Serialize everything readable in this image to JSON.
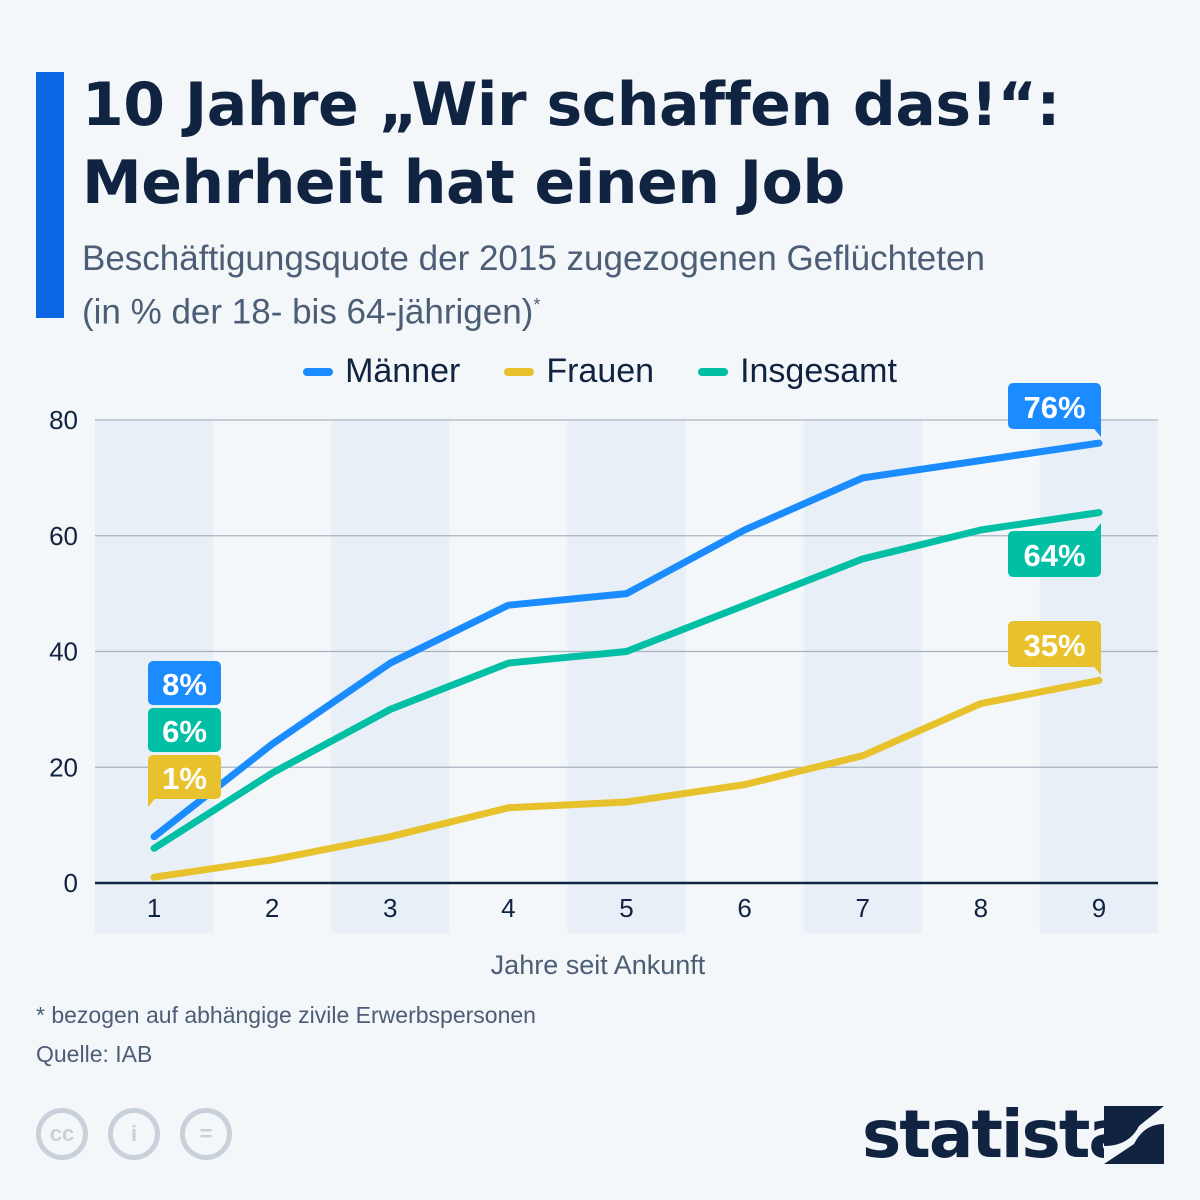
{
  "header": {
    "title_line1": "10 Jahre „Wir schaffen das!“:",
    "title_line2": "Mehrheit hat einen Job",
    "subtitle_line1": "Beschäftigungsquote der 2015 zugezogenen Geflüchteten",
    "subtitle_line2": "(in % der 18- bis 64-jährigen)",
    "subtitle_mark": "*"
  },
  "chart_data": {
    "type": "line",
    "title": "10 Jahre „Wir schaffen das!“: Mehrheit hat einen Job",
    "subtitle": "Beschäftigungsquote der 2015 zugezogenen Geflüchteten (in % der 18- bis 64-jährigen)*",
    "xlabel": "Jahre seit Ankunft",
    "ylabel": "",
    "x": [
      1,
      2,
      3,
      4,
      5,
      6,
      7,
      8,
      9
    ],
    "yticks": [
      0,
      20,
      40,
      60,
      80
    ],
    "ylim": [
      0,
      80
    ],
    "grid": true,
    "legend_position": "top",
    "series": [
      {
        "name": "Männer",
        "color": "#1a8cff",
        "values": [
          8,
          24,
          38,
          48,
          50,
          61,
          70,
          73,
          76
        ],
        "labels": {
          "first": "8%",
          "last": "76%"
        }
      },
      {
        "name": "Frauen",
        "color": "#e8c22c",
        "values": [
          1,
          4,
          8,
          13,
          14,
          17,
          22,
          31,
          35
        ],
        "labels": {
          "first": "1%",
          "last": "35%"
        }
      },
      {
        "name": "Insgesamt",
        "color": "#00bfa5",
        "values": [
          6,
          19,
          30,
          38,
          40,
          48,
          56,
          61,
          64
        ],
        "labels": {
          "first": "6%",
          "last": "64%"
        }
      }
    ]
  },
  "footer": {
    "footnote": "* bezogen auf abhängige zivile Erwerbspersonen",
    "source": "Quelle: IAB",
    "brand": "statista",
    "license_icons": [
      "cc-icon",
      "by-icon",
      "nd-icon"
    ]
  }
}
